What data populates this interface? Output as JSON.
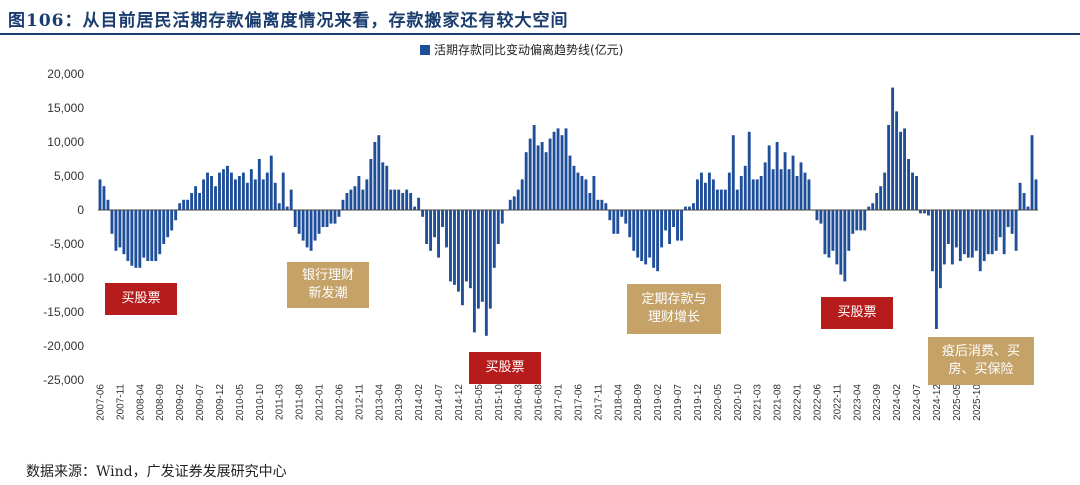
{
  "header": {
    "title": "图106：从目前居民活期存款偏离度情况来看，存款搬家还有较大空间"
  },
  "footer": {
    "source": "数据来源：Wind，广发证券发展研究中心"
  },
  "colors": {
    "bar": "#1f4e9a",
    "title": "#1a3c6e",
    "red_box": "#b71c1c",
    "tan_box": "#c4a268"
  },
  "annotations": [
    {
      "text": "买股票",
      "style": "red"
    },
    {
      "text": "银行理财\n新发潮",
      "style": "tan"
    },
    {
      "text": "买股票",
      "style": "red"
    },
    {
      "text": "定期存款与\n理财增长",
      "style": "tan"
    },
    {
      "text": "买股票",
      "style": "red"
    },
    {
      "text": "疫后消费、买\n房、买保险",
      "style": "tan"
    }
  ],
  "chart_data": {
    "type": "bar",
    "legend": "活期存款同比变动偏离趋势线(亿元)",
    "ylim": [
      -25000,
      20000
    ],
    "yticks": [
      20000,
      15000,
      10000,
      5000,
      0,
      -5000,
      -10000,
      -15000,
      -20000,
      -25000
    ],
    "ytick_labels": [
      "20,000",
      "15,000",
      "10,000",
      "5,000",
      "0",
      "-5,000",
      "-10,000",
      "-15,000",
      "-20,000",
      "-25,000"
    ],
    "xtick_labels": [
      "2007-06",
      "2007-11",
      "2008-04",
      "2008-09",
      "2009-02",
      "2009-07",
      "2009-12",
      "2010-05",
      "2010-10",
      "2011-03",
      "2011-08",
      "2012-01",
      "2012-06",
      "2012-11",
      "2013-04",
      "2013-09",
      "2014-02",
      "2014-07",
      "2014-12",
      "2015-05",
      "2015-10",
      "2016-03",
      "2016-08",
      "2017-01",
      "2017-06",
      "2017-11",
      "2018-04",
      "2018-09",
      "2019-02",
      "2019-07",
      "2019-12",
      "2020-05",
      "2020-10",
      "2021-03",
      "2021-08",
      "2022-01",
      "2022-06",
      "2022-11",
      "2023-04",
      "2023-09",
      "2024-02",
      "2024-07",
      "2024-12",
      "2025-05",
      "2025-10"
    ],
    "values": [
      4500,
      3500,
      1500,
      -3500,
      -6000,
      -5500,
      -6500,
      -7500,
      -8200,
      -8500,
      -8500,
      -7000,
      -7500,
      -7500,
      -7500,
      -6500,
      -5000,
      -4000,
      -3000,
      -1500,
      1000,
      1500,
      1500,
      2500,
      3500,
      2500,
      4500,
      5500,
      5000,
      3500,
      5500,
      6000,
      6500,
      5500,
      4500,
      5000,
      5500,
      4000,
      6000,
      4500,
      7500,
      4500,
      5500,
      8000,
      4000,
      1000,
      5500,
      500,
      3000,
      -2500,
      -3500,
      -4500,
      -5500,
      -6000,
      -4500,
      -3500,
      -2500,
      -2500,
      -2000,
      -2000,
      -1000,
      1500,
      2500,
      3000,
      3500,
      5000,
      3000,
      4500,
      7500,
      10000,
      11000,
      7000,
      6500,
      3000,
      3000,
      3000,
      2500,
      3000,
      2500,
      500,
      1800,
      -1000,
      -5000,
      -6000,
      -4000,
      -7000,
      -2500,
      -5500,
      -10500,
      -11000,
      -12000,
      -14000,
      -10500,
      -11500,
      -18000,
      -14500,
      -13500,
      -18500,
      -14500,
      -8500,
      -5000,
      -2000,
      0,
      1500,
      2000,
      3000,
      4500,
      8500,
      10500,
      12500,
      9500,
      10000,
      8500,
      10500,
      11500,
      12000,
      11000,
      12000,
      8000,
      6500,
      5500,
      5000,
      4500,
      2500,
      5000,
      1500,
      1500,
      1000,
      -1500,
      -3500,
      -3500,
      -1000,
      -2000,
      -4000,
      -6000,
      -7000,
      -7500,
      -8000,
      -7000,
      -8500,
      -9000,
      -5500,
      -3000,
      -5000,
      -2500,
      -4500,
      -4500,
      500,
      500,
      1000,
      4500,
      5500,
      4000,
      5500,
      4500,
      3000,
      3000,
      3000,
      5500,
      11000,
      3000,
      5000,
      6500,
      11500,
      4500,
      4500,
      5000,
      7000,
      9500,
      6000,
      10000,
      6000,
      8500,
      6000,
      8000,
      5000,
      7000,
      5500,
      4500,
      0,
      -1500,
      -2000,
      -6500,
      -7000,
      -6000,
      -8000,
      -9500,
      -10500,
      -6000,
      -3500,
      -3000,
      -3000,
      -3000,
      500,
      1000,
      2500,
      3500,
      5500,
      12500,
      18000,
      14500,
      11500,
      12000,
      7500,
      5500,
      5000,
      -500,
      -500,
      -800,
      -9000,
      -17500,
      -11500,
      -8000,
      -5000,
      -8000,
      -5500,
      -7500,
      -6500,
      -7000,
      -7000,
      -6000,
      -9000,
      -7500,
      -6500,
      -6500,
      -6000,
      -4000,
      -6500,
      -2500,
      -3500,
      -6000,
      4000,
      2500,
      500,
      11000,
      4500
    ]
  }
}
